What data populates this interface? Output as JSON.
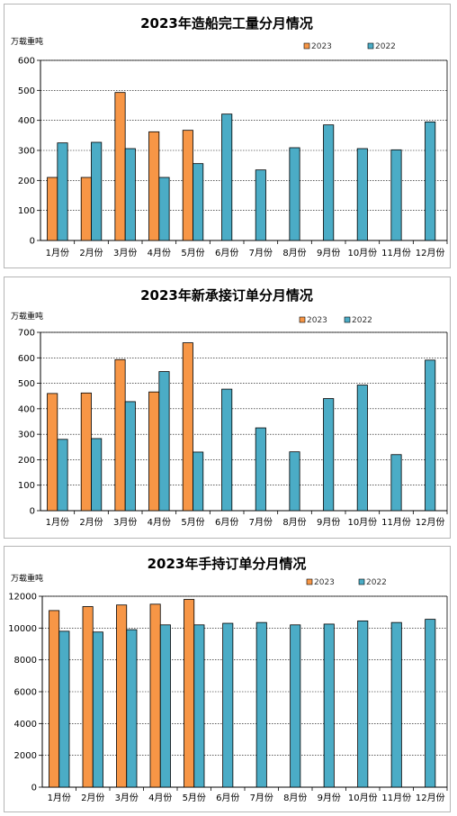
{
  "colors": {
    "y2023": "#f79646",
    "y2022": "#4bacc6",
    "stroke": "#000000",
    "grid": "#000000"
  },
  "chart_data": [
    {
      "type": "bar",
      "title": "2023年造船完工量分月情况",
      "ylabel": "万载重吨",
      "categories": [
        "1月份",
        "2月份",
        "3月份",
        "4月份",
        "5月份",
        "6月份",
        "7月份",
        "8月份",
        "9月份",
        "10月份",
        "11月份",
        "12月份"
      ],
      "ylim": [
        0,
        600
      ],
      "yticks": [
        0,
        100,
        200,
        300,
        400,
        500,
        600
      ],
      "grid": true,
      "legend": "top-right",
      "series": [
        {
          "name": "2023",
          "values": [
            210,
            210,
            493,
            362,
            367,
            null,
            null,
            null,
            null,
            null,
            null,
            null
          ]
        },
        {
          "name": "2022",
          "values": [
            325,
            327,
            306,
            210,
            256,
            421,
            235,
            309,
            385,
            306,
            302,
            395
          ]
        }
      ]
    },
    {
      "type": "bar",
      "title": "2023年新承接订单分月情况",
      "ylabel": "万载重吨",
      "categories": [
        "1月份",
        "2月份",
        "3月份",
        "4月份",
        "5月份",
        "6月份",
        "7月份",
        "8月份",
        "9月份",
        "10月份",
        "11月份",
        "12月份"
      ],
      "ylim": [
        0,
        700
      ],
      "yticks": [
        0,
        100,
        200,
        300,
        400,
        500,
        600,
        700
      ],
      "grid": true,
      "legend": "top-right",
      "series": [
        {
          "name": "2023",
          "values": [
            460,
            462,
            593,
            466,
            659,
            null,
            null,
            null,
            null,
            null,
            null,
            null
          ]
        },
        {
          "name": "2022",
          "values": [
            280,
            283,
            428,
            546,
            230,
            477,
            325,
            231,
            440,
            493,
            220,
            591
          ]
        }
      ]
    },
    {
      "type": "bar",
      "title": "2023年手持订单分月情况",
      "ylabel": "万载重吨",
      "categories": [
        "1月份",
        "2月份",
        "3月份",
        "4月份",
        "5月份",
        "6月份",
        "7月份",
        "8月份",
        "9月份",
        "10月份",
        "11月份",
        "12月份"
      ],
      "ylim": [
        0,
        12000
      ],
      "yticks": [
        0,
        2000,
        4000,
        6000,
        8000,
        10000,
        12000
      ],
      "grid": true,
      "legend": "top-right",
      "series": [
        {
          "name": "2023",
          "values": [
            11100,
            11350,
            11450,
            11500,
            11800,
            null,
            null,
            null,
            null,
            null,
            null,
            null
          ]
        },
        {
          "name": "2022",
          "values": [
            9800,
            9750,
            9900,
            10200,
            10200,
            10300,
            10350,
            10200,
            10250,
            10450,
            10350,
            10550
          ]
        }
      ]
    }
  ]
}
